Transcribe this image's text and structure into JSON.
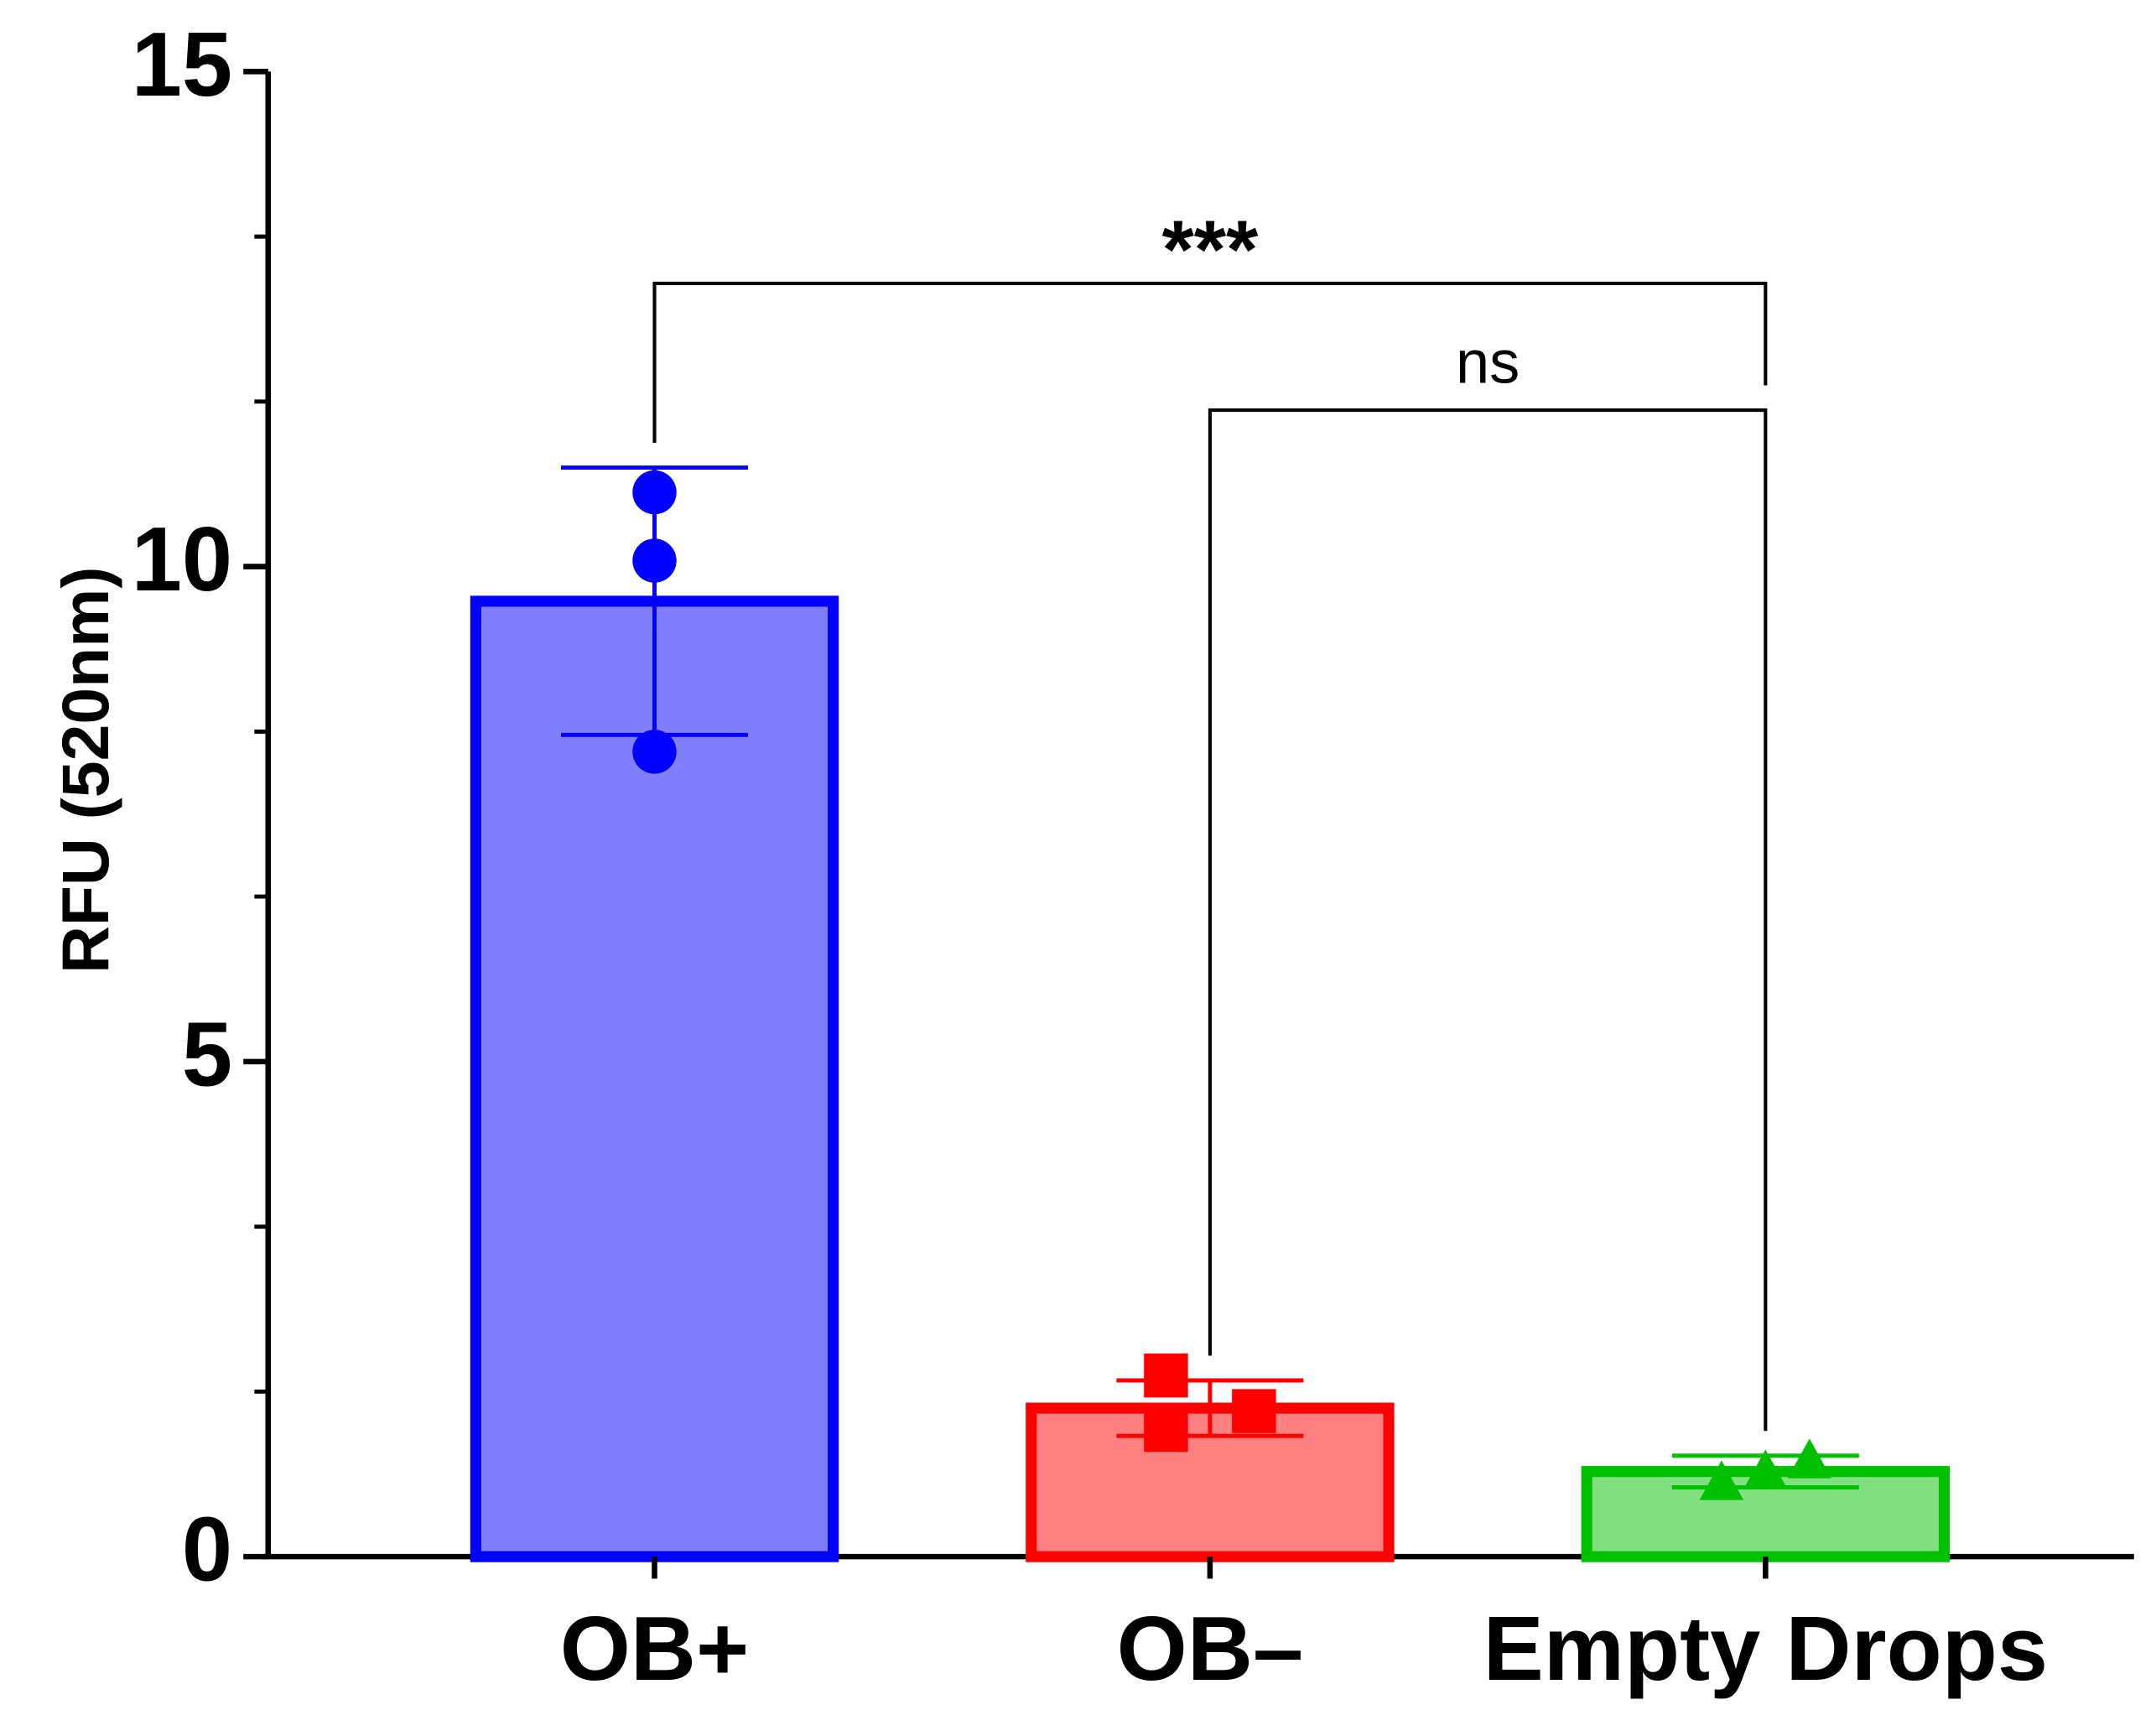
{
  "chart_data": {
    "type": "bar",
    "ylabel": "RFU (520nm)",
    "categories": [
      "OB+",
      "OB–",
      "Empty Drops"
    ],
    "values": [
      9.65,
      1.5,
      0.86
    ],
    "errors": [
      1.35,
      0.28,
      0.16
    ],
    "points": [
      [
        10.75,
        10.06,
        8.13
      ],
      [
        1.83,
        1.28,
        1.47
      ],
      [
        0.75,
        0.86,
        0.97
      ]
    ],
    "colors": [
      "#0000ff",
      "#ff0000",
      "#00c000"
    ],
    "fills": [
      "#8080ff",
      "#ff8080",
      "#80e080"
    ],
    "markers": [
      "circle",
      "square",
      "triangle"
    ],
    "ylim": [
      0,
      15
    ],
    "yticks": [
      0,
      5,
      10,
      15
    ],
    "yminor": [
      1.667,
      3.333,
      6.667,
      8.333,
      11.667,
      13.333
    ],
    "comparisons": [
      {
        "label": "***",
        "from": 0,
        "to": 2,
        "y": 12.86
      },
      {
        "label": "ns",
        "from": 1,
        "to": 2,
        "y": 11.58
      }
    ]
  }
}
